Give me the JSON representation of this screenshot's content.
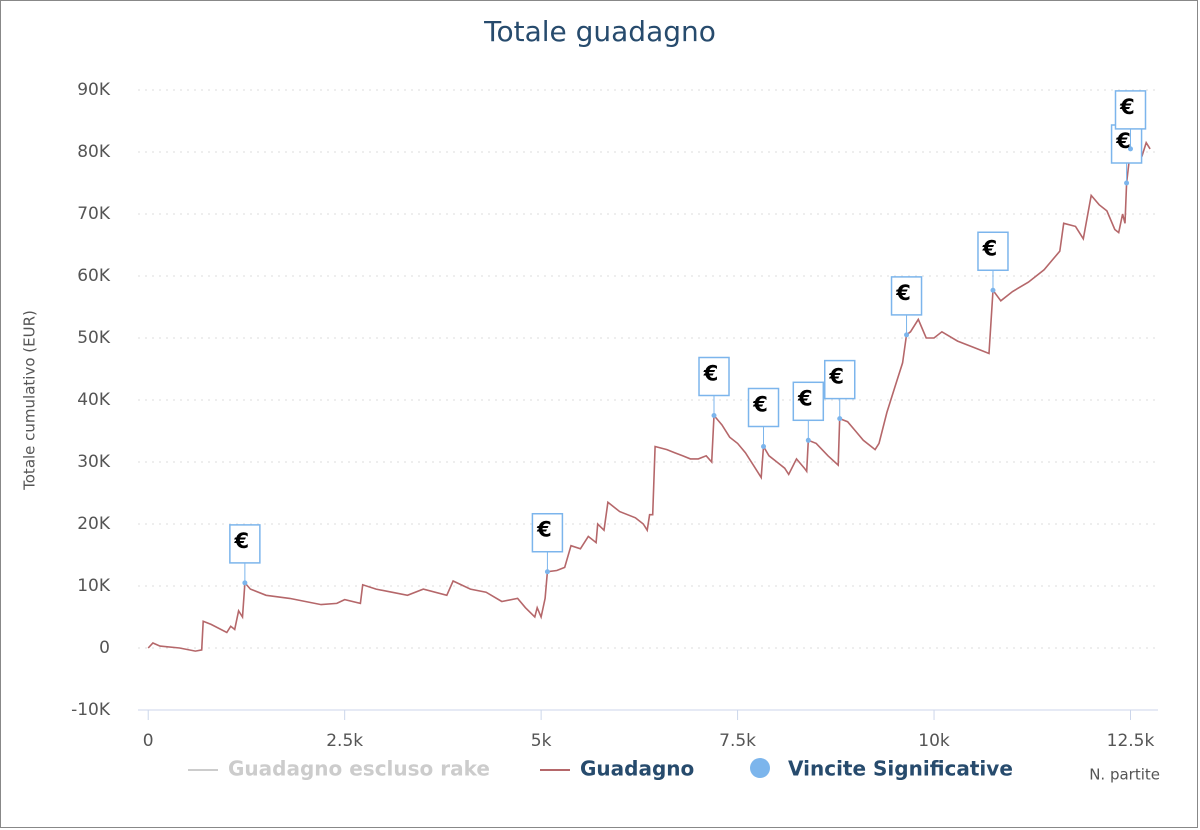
{
  "chart_data": {
    "type": "line",
    "title": "Totale guadagno",
    "y_label": "Totale cumulativo (EUR)",
    "x_label": "N. partite",
    "xlim": [
      -130,
      12850
    ],
    "ylim": [
      -10000,
      90000
    ],
    "xticks": [
      0,
      {
        "value": 2500,
        "label": "2.5k"
      },
      {
        "value": 5000,
        "label": "5k"
      },
      {
        "value": 7500,
        "label": "7.5k"
      },
      {
        "value": 10000,
        "label": "10k"
      },
      {
        "value": 12500,
        "label": "12.5k"
      }
    ],
    "yticks": [
      {
        "value": -10000,
        "label": "-10K"
      },
      0,
      {
        "value": 10000,
        "label": "10K"
      },
      {
        "value": 20000,
        "label": "20K"
      },
      {
        "value": 30000,
        "label": "30K"
      },
      {
        "value": 40000,
        "label": "40K"
      },
      {
        "value": 50000,
        "label": "50K"
      },
      {
        "value": 60000,
        "label": "60K"
      },
      {
        "value": 70000,
        "label": "70K"
      },
      {
        "value": 80000,
        "label": "80K"
      },
      {
        "value": 90000,
        "label": "90K"
      }
    ],
    "grid": true,
    "series": [
      {
        "name": "Guadagno escluso rake",
        "color": "#cccccc",
        "visible": false
      },
      {
        "name": "Guadagno",
        "color": "#b5676a",
        "x": [
          0,
          60,
          150,
          400,
          600,
          680,
          700,
          800,
          1000,
          1050,
          1100,
          1150,
          1200,
          1230,
          1300,
          1500,
          1800,
          2000,
          2200,
          2400,
          2500,
          2700,
          2730,
          2900,
          3100,
          3300,
          3500,
          3800,
          3880,
          4100,
          4300,
          4500,
          4700,
          4800,
          4920,
          4950,
          5000,
          5050,
          5080,
          5200,
          5300,
          5380,
          5500,
          5600,
          5700,
          5720,
          5800,
          5850,
          6000,
          6200,
          6300,
          6350,
          6380,
          6420,
          6450,
          6600,
          6700,
          6800,
          6900,
          7000,
          7100,
          7170,
          7200,
          7300,
          7400,
          7500,
          7600,
          7700,
          7800,
          7830,
          7900,
          8000,
          8100,
          8150,
          8250,
          8350,
          8380,
          8400,
          8500,
          8650,
          8780,
          8800,
          8900,
          9000,
          9100,
          9200,
          9250,
          9300,
          9400,
          9500,
          9600,
          9650,
          9700,
          9800,
          9900,
          10000,
          10100,
          10300,
          10500,
          10600,
          10700,
          10750,
          10850,
          11000,
          11200,
          11400,
          11500,
          11600,
          11650,
          11800,
          11900,
          12000,
          12100,
          12200,
          12300,
          12350,
          12400,
          12430,
          12450,
          12500,
          12550,
          12650,
          12700,
          12750
        ],
        "values": [
          0,
          800,
          300,
          0,
          -500,
          -300,
          4300,
          3800,
          2500,
          3500,
          3000,
          6000,
          5000,
          10500,
          9500,
          8500,
          8000,
          7500,
          7000,
          7200,
          7800,
          7200,
          10200,
          9500,
          9000,
          8500,
          9500,
          8500,
          10800,
          9500,
          9000,
          7500,
          8000,
          6500,
          5000,
          6500,
          5000,
          8000,
          12300,
          12500,
          13000,
          16500,
          16000,
          18000,
          17000,
          20000,
          19000,
          23500,
          22000,
          21000,
          20000,
          19000,
          21500,
          21500,
          32500,
          32000,
          31500,
          31000,
          30500,
          30500,
          31000,
          30000,
          37500,
          36000,
          34000,
          33000,
          31500,
          29500,
          27500,
          32500,
          31000,
          30000,
          29000,
          28000,
          30500,
          29000,
          28500,
          33500,
          33000,
          31000,
          29500,
          37000,
          36500,
          35000,
          33500,
          32500,
          32000,
          33000,
          38000,
          42000,
          46000,
          50500,
          51000,
          53000,
          50000,
          50000,
          51000,
          49500,
          48500,
          48000,
          47500,
          57700,
          56000,
          57500,
          59000,
          61000,
          62500,
          64000,
          68500,
          68000,
          66000,
          73000,
          71500,
          70500,
          67500,
          67000,
          70000,
          68500,
          75000,
          80500,
          82000,
          79500,
          81500,
          80500
        ]
      },
      {
        "name": "Vincite Significative",
        "color": "#7cb5ec",
        "marker": "flag",
        "flag_label": "€",
        "x": [
          1230,
          5080,
          7200,
          7830,
          8400,
          8800,
          9650,
          10750,
          12450,
          12500
        ],
        "values": [
          10500,
          12300,
          37500,
          32500,
          33500,
          37000,
          50500,
          57700,
          75000,
          80500
        ]
      }
    ]
  }
}
